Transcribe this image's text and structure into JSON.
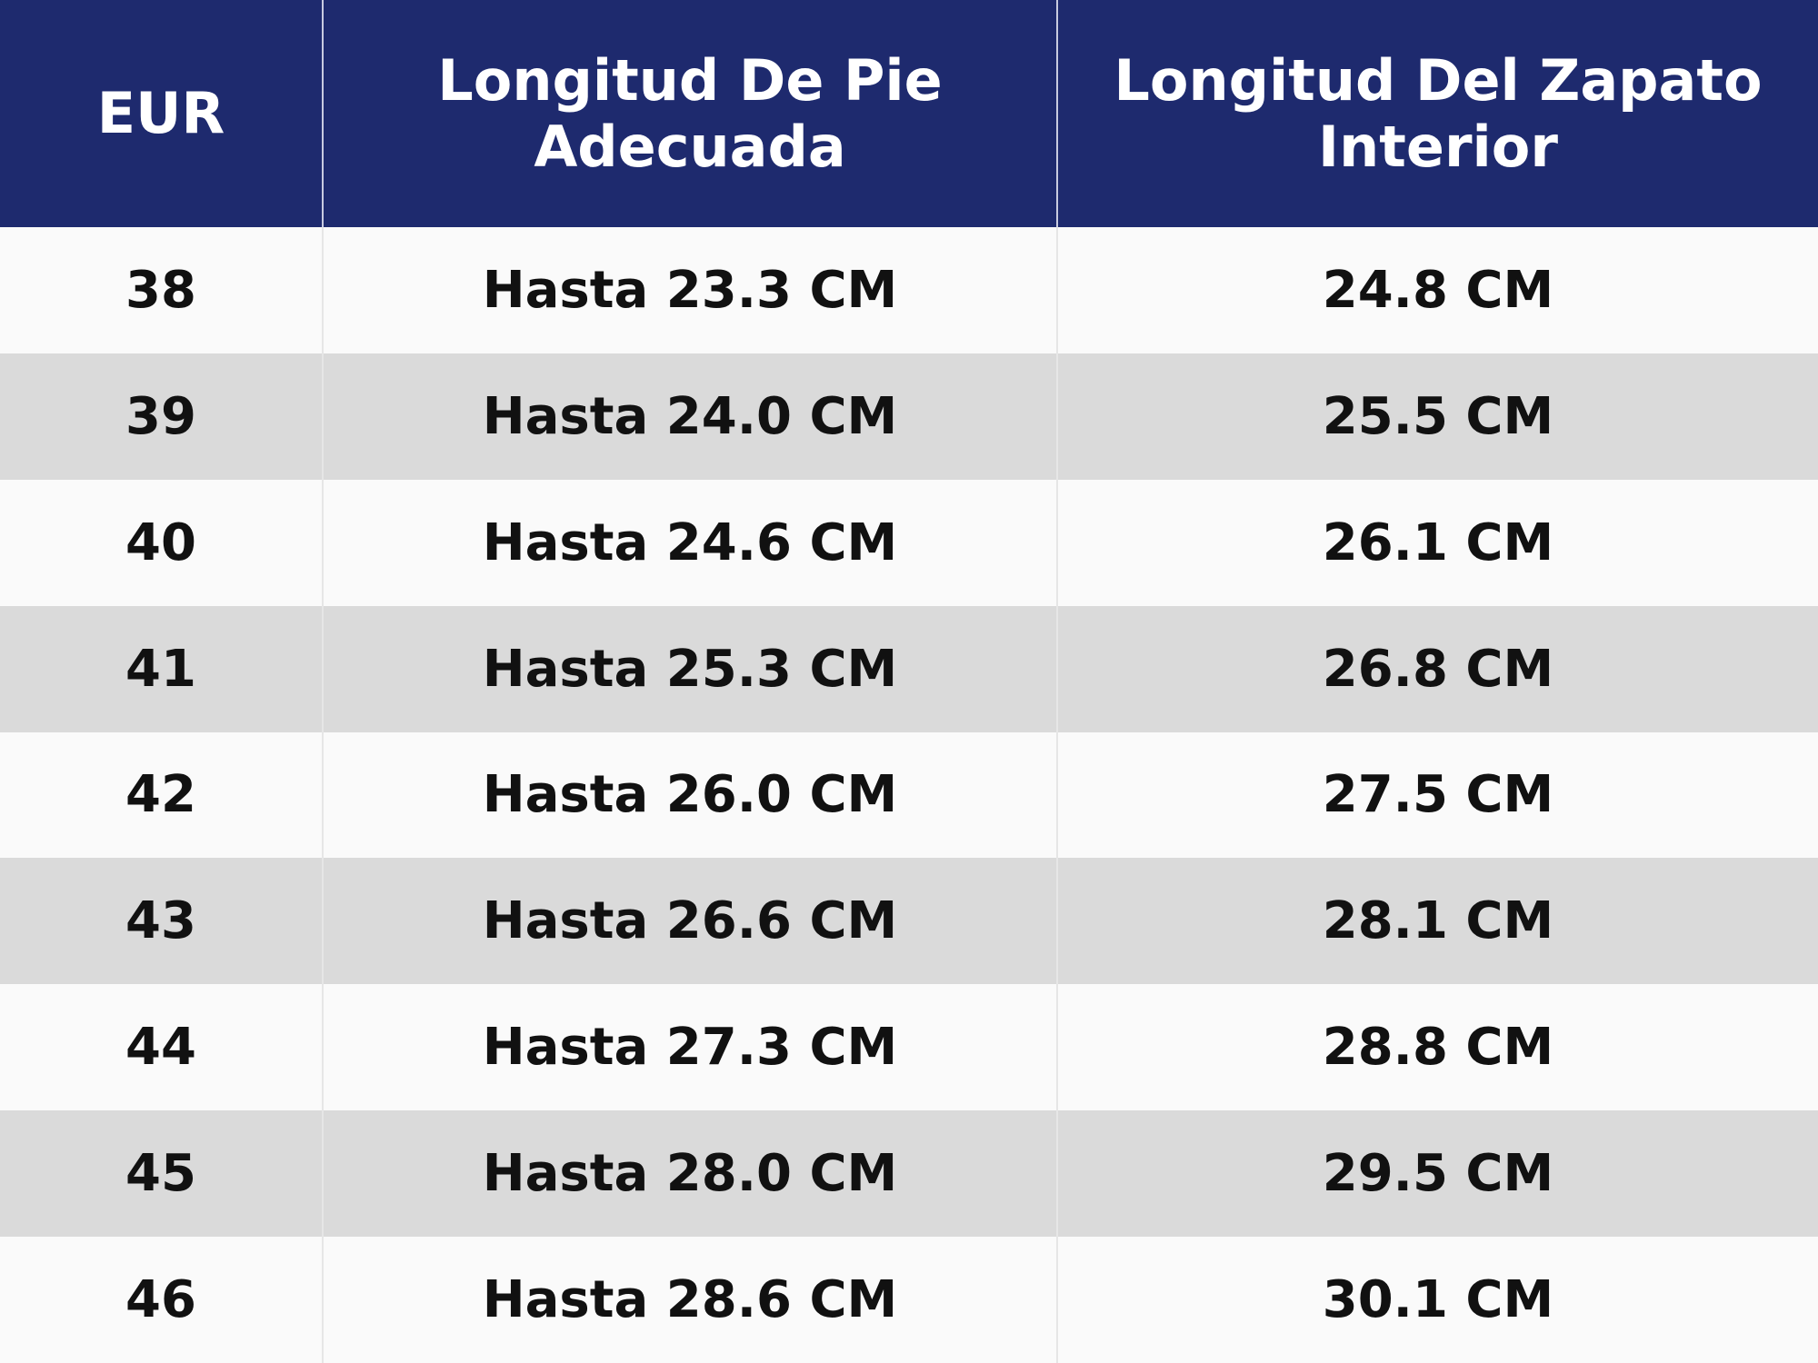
{
  "table": {
    "header": [
      "EUR",
      "Longitud De Pie Adecuada",
      "Longitud Del Zapato Interior"
    ],
    "rows": [
      [
        "38",
        "Hasta 23.3 CM",
        "24.8 CM"
      ],
      [
        "39",
        "Hasta 24.0 CM",
        "25.5 CM"
      ],
      [
        "40",
        "Hasta 24.6 CM",
        "26.1 CM"
      ],
      [
        "41",
        "Hasta 25.3 CM",
        "26.8 CM"
      ],
      [
        "42",
        "Hasta 26.0 CM",
        "27.5 CM"
      ],
      [
        "43",
        "Hasta 26.6 CM",
        "28.1 CM"
      ],
      [
        "44",
        "Hasta 27.3 CM",
        "28.8 CM"
      ],
      [
        "45",
        "Hasta 28.0 CM",
        "29.5 CM"
      ],
      [
        "46",
        "Hasta 28.6 CM",
        "30.1 CM"
      ]
    ]
  }
}
